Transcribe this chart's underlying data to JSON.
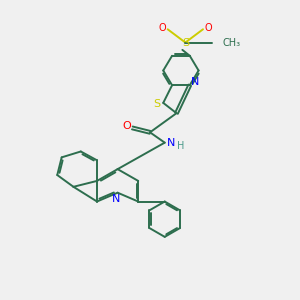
{
  "bg_color": "#f0f0f0",
  "bond_color": "#2d6e4e",
  "N_color": "#0000ff",
  "O_color": "#ff0000",
  "S_color": "#cccc00",
  "H_color": "#4a9a8a",
  "line_width": 1.4,
  "dbo": 0.07,
  "fig_width": 3.0,
  "fig_height": 3.0,
  "xlim": [
    0,
    10
  ],
  "ylim": [
    0,
    10
  ]
}
